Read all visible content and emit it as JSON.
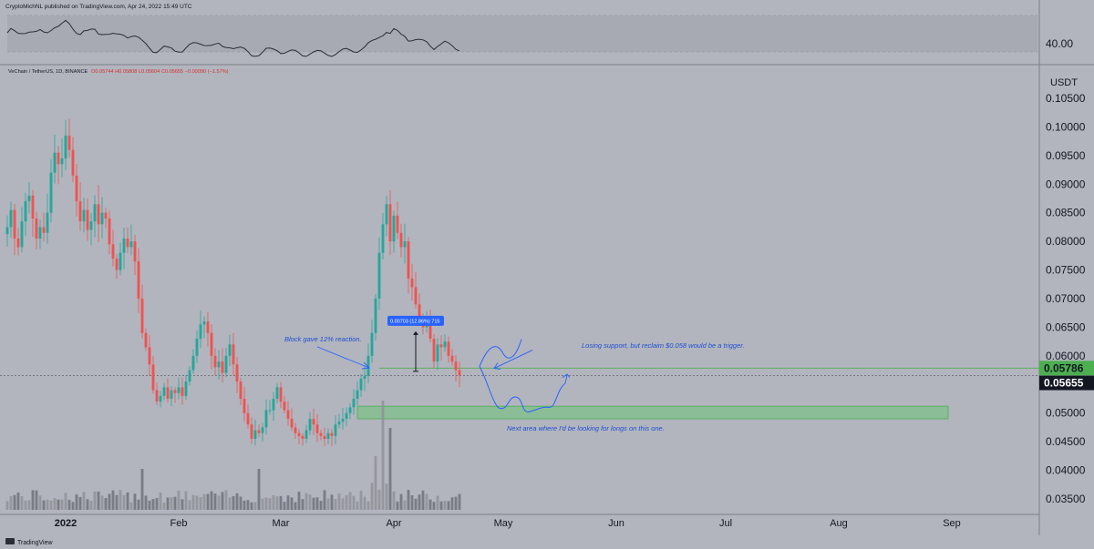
{
  "header": {
    "publisher": "CryptoMichNL published on TradingView.com, Apr 24, 2022 15:49 UTC"
  },
  "legend": {
    "symbol": "VeChain / TetherUS, 1D, BINANCE",
    "ohlc": "O0.05744 H0.05808 L0.05604 C0.05655 −0.00090 (−1.57%)"
  },
  "indicator": {
    "level_label": "40.00"
  },
  "footer": {
    "brand": "TradingView"
  },
  "colors": {
    "background": "#b2b5be",
    "up": "#26a69a",
    "down": "#ef5350",
    "annotation": "#2962ff",
    "zone_fill": "#7ec08a",
    "last_price_bg": "#131722",
    "reclaim_bg": "#4caf50"
  },
  "chart_data": {
    "type": "candlestick",
    "title": "VeChain / TetherUS, 1D, BINANCE",
    "ylabel": "USDT",
    "ylim": [
      0.0325,
      0.1095
    ],
    "y_ticks": [
      "0.10500",
      "0.10000",
      "0.09500",
      "0.09000",
      "0.08500",
      "0.08000",
      "0.07500",
      "0.07000",
      "0.06500",
      "0.06000",
      "0.05500",
      "0.05000",
      "0.04500",
      "0.04000",
      "0.03500"
    ],
    "x_ticks": [
      "2022",
      "Feb",
      "Mar",
      "Apr",
      "May",
      "Jun",
      "Jul",
      "Aug",
      "Sep"
    ],
    "x_range": [
      "2021-12-16",
      "2022-09-22"
    ],
    "candle_dates": [
      "2021-12-16",
      "2021-12-17",
      "2021-12-18",
      "2021-12-19",
      "2021-12-20",
      "2021-12-21",
      "2021-12-22",
      "2021-12-23",
      "2021-12-24",
      "2021-12-25",
      "2021-12-26",
      "2021-12-27",
      "2021-12-28",
      "2021-12-29",
      "2021-12-30",
      "2021-12-31",
      "2022-01-01",
      "2022-01-02",
      "2022-01-03",
      "2022-01-04",
      "2022-01-05",
      "2022-01-06",
      "2022-01-07",
      "2022-01-08",
      "2022-01-09",
      "2022-01-10",
      "2022-01-11",
      "2022-01-12",
      "2022-01-13",
      "2022-01-14",
      "2022-01-15",
      "2022-01-16",
      "2022-01-17",
      "2022-01-18",
      "2022-01-19",
      "2022-01-20",
      "2022-01-21",
      "2022-01-22",
      "2022-01-23",
      "2022-01-24",
      "2022-01-25",
      "2022-01-26",
      "2022-01-27",
      "2022-01-28",
      "2022-01-29",
      "2022-01-30",
      "2022-01-31",
      "2022-02-01",
      "2022-02-02",
      "2022-02-03",
      "2022-02-04",
      "2022-02-05",
      "2022-02-06",
      "2022-02-07",
      "2022-02-08",
      "2022-02-09",
      "2022-02-10",
      "2022-02-11",
      "2022-02-12",
      "2022-02-13",
      "2022-02-14",
      "2022-02-15",
      "2022-02-16",
      "2022-02-17",
      "2022-02-18",
      "2022-02-19",
      "2022-02-20",
      "2022-02-21",
      "2022-02-22",
      "2022-02-23",
      "2022-02-24",
      "2022-02-25",
      "2022-02-26",
      "2022-02-27",
      "2022-02-28",
      "2022-03-01",
      "2022-03-02",
      "2022-03-03",
      "2022-03-04",
      "2022-03-05",
      "2022-03-06",
      "2022-03-07",
      "2022-03-08",
      "2022-03-09",
      "2022-03-10",
      "2022-03-11",
      "2022-03-12",
      "2022-03-13",
      "2022-03-14",
      "2022-03-15",
      "2022-03-16",
      "2022-03-17",
      "2022-03-18",
      "2022-03-19",
      "2022-03-20",
      "2022-03-21",
      "2022-03-22",
      "2022-03-23",
      "2022-03-24",
      "2022-03-25",
      "2022-03-26",
      "2022-03-27",
      "2022-03-28",
      "2022-03-29",
      "2022-03-30",
      "2022-03-31",
      "2022-04-01",
      "2022-04-02",
      "2022-04-03",
      "2022-04-04",
      "2022-04-05",
      "2022-04-06",
      "2022-04-07",
      "2022-04-08",
      "2022-04-09",
      "2022-04-10",
      "2022-04-11",
      "2022-04-12",
      "2022-04-13",
      "2022-04-14",
      "2022-04-15",
      "2022-04-16",
      "2022-04-17",
      "2022-04-18",
      "2022-04-19",
      "2022-04-20",
      "2022-04-21",
      "2022-04-22",
      "2022-04-23",
      "2022-04-24"
    ],
    "close": [
      0.0825,
      0.0855,
      0.0805,
      0.079,
      0.0835,
      0.087,
      0.088,
      0.084,
      0.0805,
      0.0825,
      0.0815,
      0.085,
      0.092,
      0.0955,
      0.0935,
      0.0945,
      0.0985,
      0.096,
      0.0915,
      0.087,
      0.0835,
      0.0855,
      0.082,
      0.0835,
      0.0865,
      0.083,
      0.085,
      0.084,
      0.0795,
      0.077,
      0.075,
      0.078,
      0.0805,
      0.079,
      0.08,
      0.0765,
      0.07,
      0.064,
      0.0615,
      0.0585,
      0.054,
      0.052,
      0.053,
      0.0545,
      0.0525,
      0.054,
      0.0535,
      0.0545,
      0.053,
      0.0555,
      0.0575,
      0.06,
      0.063,
      0.0655,
      0.066,
      0.064,
      0.06,
      0.058,
      0.059,
      0.057,
      0.06,
      0.062,
      0.0585,
      0.0555,
      0.0525,
      0.05,
      0.048,
      0.0455,
      0.047,
      0.0465,
      0.0475,
      0.0505,
      0.0505,
      0.0525,
      0.0545,
      0.052,
      0.0505,
      0.049,
      0.0475,
      0.0465,
      0.046,
      0.0455,
      0.047,
      0.049,
      0.048,
      0.0465,
      0.046,
      0.0455,
      0.0465,
      0.046,
      0.048,
      0.0485,
      0.049,
      0.05,
      0.051,
      0.0525,
      0.054,
      0.056,
      0.0565,
      0.06,
      0.064,
      0.07,
      0.078,
      0.083,
      0.0865,
      0.08,
      0.0845,
      0.0815,
      0.079,
      0.08,
      0.0735,
      0.072,
      0.069,
      0.066,
      0.065,
      0.066,
      0.063,
      0.059,
      0.062,
      0.0615,
      0.0625,
      0.06,
      0.059,
      0.0575,
      0.0566
    ],
    "volume_note": "relative volume bars shown beneath price",
    "last_price": "0.05655",
    "reclaim_level": "0.05786",
    "demand_zone": {
      "from": "2022-03-22",
      "to": "2022-08-31",
      "low": 0.049,
      "high": 0.0512
    },
    "reclaim_line": "0.05786",
    "measurement": {
      "label": "0.00703 (12.86%) 715",
      "from_price": 0.0573,
      "to_price": 0.0643,
      "date": "2022-04-07"
    },
    "annotations": {
      "block_reaction": "Block gave 12% reaction.",
      "losing_support": "Losing support, but reclaim $0.058 would be a trigger.",
      "next_area": "Next area where I'd be looking for longs on this one."
    },
    "grid": false,
    "legend_position": "top-left"
  }
}
